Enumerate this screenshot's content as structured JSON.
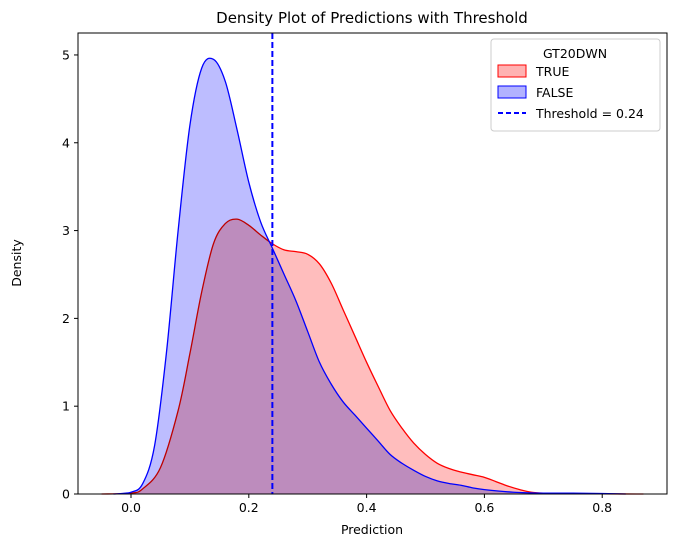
{
  "chart_data": {
    "type": "area",
    "title": "Density Plot of Predictions with Threshold",
    "xlabel": "Prediction",
    "ylabel": "Density",
    "xlim": [
      -0.09,
      0.91
    ],
    "ylim": [
      0,
      5.25
    ],
    "xticks": [
      0.0,
      0.2,
      0.4,
      0.6,
      0.8
    ],
    "xtick_labels": [
      "0.0",
      "0.2",
      "0.4",
      "0.6",
      "0.8"
    ],
    "yticks": [
      0,
      1,
      2,
      3,
      4,
      5
    ],
    "ytick_labels": [
      "0",
      "1",
      "2",
      "3",
      "4",
      "5"
    ],
    "grid": false,
    "legend": {
      "title": "GT20DWN",
      "placement": "top-right",
      "entries": [
        "TRUE",
        "FALSE",
        "Threshold = 0.24"
      ]
    },
    "threshold": {
      "value": 0.24,
      "label": "Threshold = 0.24",
      "color": "#0000ff",
      "style": "dashed"
    },
    "series": [
      {
        "name": "TRUE",
        "color": "#ff0000",
        "fill": "#ffb2b2",
        "x": [
          -0.05,
          0.0,
          0.02,
          0.05,
          0.08,
          0.1,
          0.12,
          0.14,
          0.16,
          0.18,
          0.2,
          0.22,
          0.24,
          0.26,
          0.28,
          0.3,
          0.32,
          0.34,
          0.36,
          0.38,
          0.4,
          0.42,
          0.44,
          0.46,
          0.48,
          0.5,
          0.52,
          0.54,
          0.56,
          0.58,
          0.6,
          0.62,
          0.64,
          0.66,
          0.68,
          0.7,
          0.75,
          0.8,
          0.87
        ],
        "y": [
          0.0,
          0.01,
          0.06,
          0.3,
          0.95,
          1.6,
          2.3,
          2.85,
          3.08,
          3.13,
          3.06,
          2.95,
          2.85,
          2.78,
          2.76,
          2.73,
          2.62,
          2.4,
          2.1,
          1.8,
          1.5,
          1.22,
          0.95,
          0.75,
          0.58,
          0.45,
          0.35,
          0.29,
          0.25,
          0.22,
          0.19,
          0.14,
          0.09,
          0.05,
          0.02,
          0.01,
          0.003,
          0.001,
          0.0
        ]
      },
      {
        "name": "FALSE",
        "color": "#0000ff",
        "fill": "#b2b2ff",
        "x": [
          -0.03,
          0.0,
          0.02,
          0.04,
          0.06,
          0.08,
          0.1,
          0.12,
          0.14,
          0.16,
          0.18,
          0.2,
          0.22,
          0.24,
          0.26,
          0.28,
          0.3,
          0.32,
          0.34,
          0.36,
          0.38,
          0.4,
          0.42,
          0.44,
          0.46,
          0.48,
          0.5,
          0.52,
          0.54,
          0.56,
          0.58,
          0.6,
          0.65,
          0.7,
          0.75,
          0.8,
          0.84
        ],
        "y": [
          0.0,
          0.02,
          0.12,
          0.55,
          1.6,
          3.0,
          4.2,
          4.85,
          4.95,
          4.7,
          4.15,
          3.55,
          3.1,
          2.8,
          2.5,
          2.2,
          1.85,
          1.5,
          1.25,
          1.05,
          0.9,
          0.75,
          0.6,
          0.45,
          0.35,
          0.27,
          0.2,
          0.15,
          0.12,
          0.1,
          0.07,
          0.05,
          0.02,
          0.01,
          0.01,
          0.005,
          0.0
        ]
      }
    ]
  }
}
